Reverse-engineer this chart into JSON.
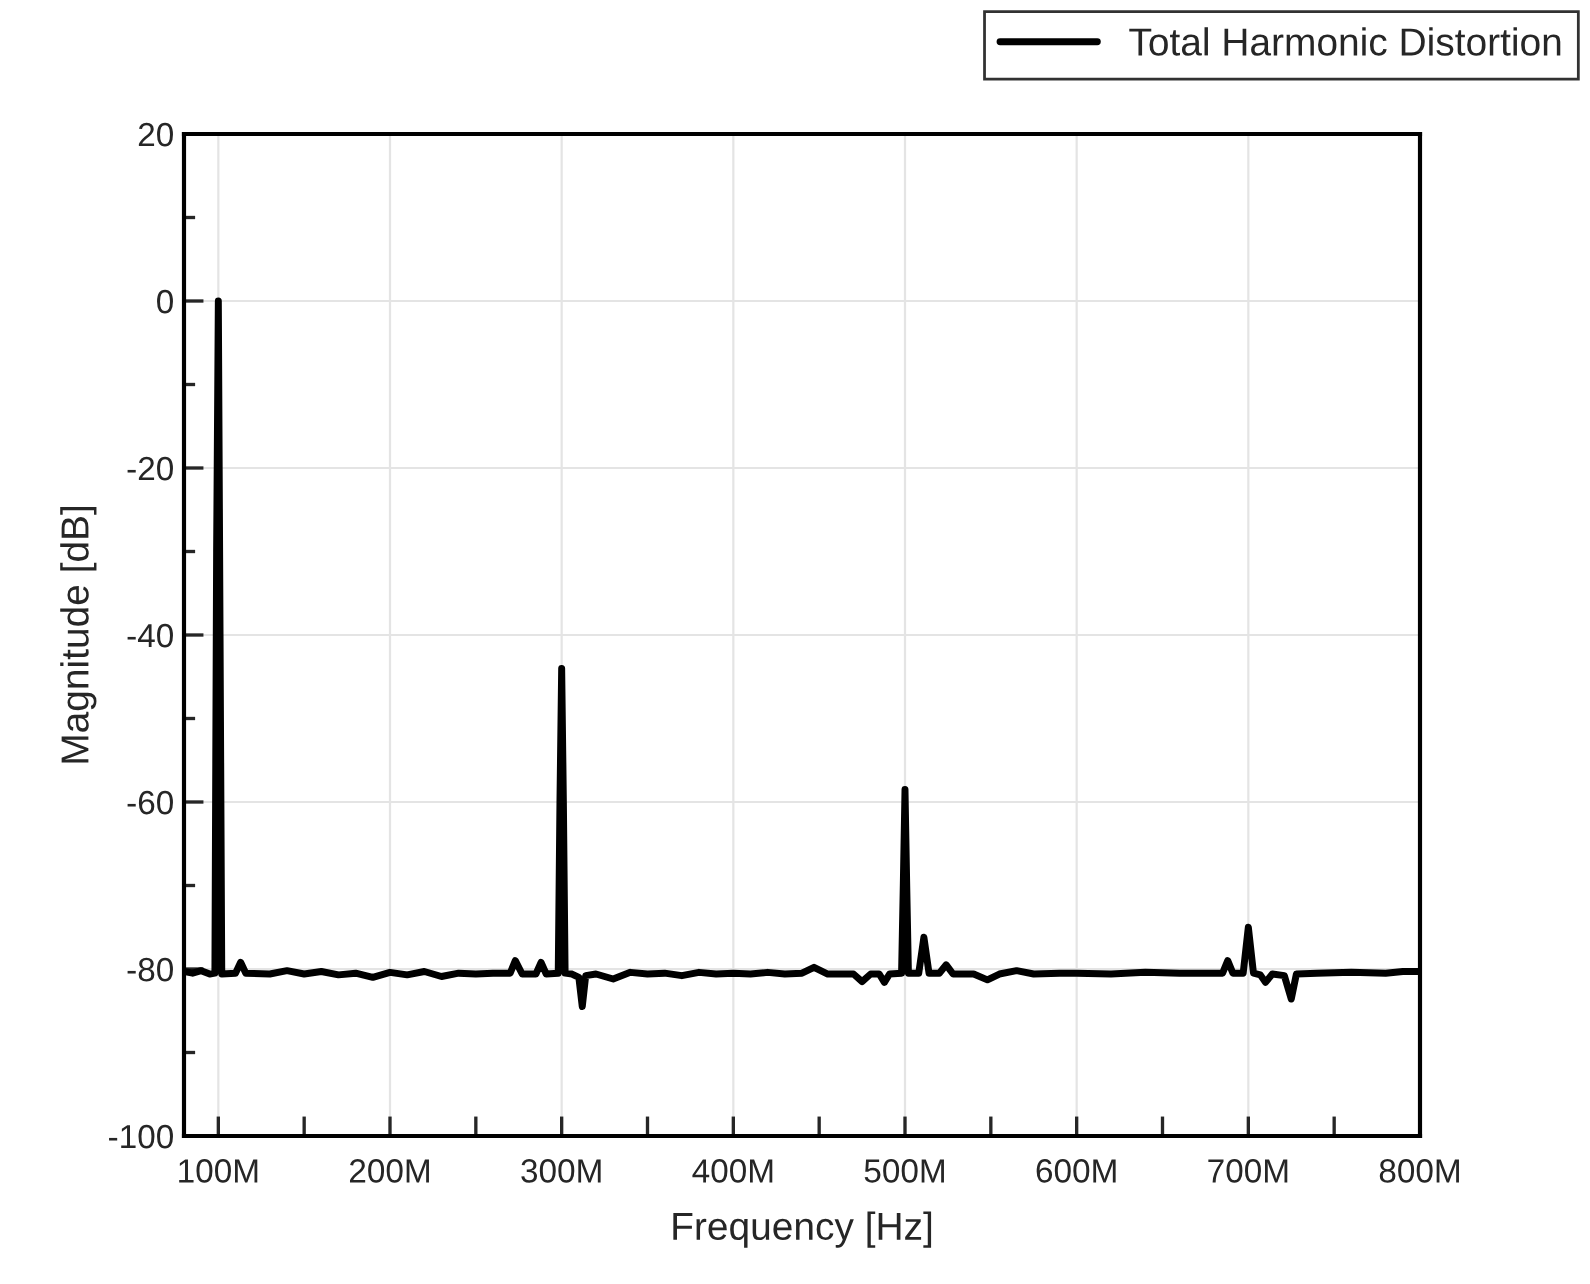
{
  "chart_data": {
    "type": "line",
    "xlabel": "Frequency [Hz]",
    "ylabel": "Magnitude [dB]",
    "xlim": [
      80000000,
      800000000
    ],
    "xticks": [
      {
        "value": 100000000,
        "label": "100M"
      },
      {
        "value": 150000000,
        "label": null
      },
      {
        "value": 200000000,
        "label": "200M"
      },
      {
        "value": 250000000,
        "label": null
      },
      {
        "value": 300000000,
        "label": "300M"
      },
      {
        "value": 350000000,
        "label": null
      },
      {
        "value": 400000000,
        "label": "400M"
      },
      {
        "value": 450000000,
        "label": null
      },
      {
        "value": 500000000,
        "label": "500M"
      },
      {
        "value": 550000000,
        "label": null
      },
      {
        "value": 600000000,
        "label": "600M"
      },
      {
        "value": 650000000,
        "label": null
      },
      {
        "value": 700000000,
        "label": "700M"
      },
      {
        "value": 750000000,
        "label": null
      },
      {
        "value": 800000000,
        "label": "800M"
      }
    ],
    "ylim": [
      -100,
      20
    ],
    "yticks": [
      -100,
      {
        "value": -90,
        "label": null
      },
      -80,
      {
        "value": -70,
        "label": null
      },
      -60,
      {
        "value": -50,
        "label": null
      },
      -40,
      {
        "value": -30,
        "label": null
      },
      -20,
      {
        "value": -10,
        "label": null
      },
      0,
      {
        "value": 10,
        "label": null
      },
      20
    ],
    "grid": true,
    "legend": "top right",
    "marker": "none",
    "line_style": "solid",
    "series": [
      {
        "name": "Total Harmonic Distortion",
        "color": "#000000",
        "x": [
          80000000,
          85000000,
          90000000,
          95000000,
          98000000,
          99000000,
          100000000,
          101000000,
          102000000,
          110000000,
          113000000,
          116000000,
          130000000,
          140000000,
          150000000,
          160000000,
          170000000,
          180000000,
          190000000,
          200000000,
          210000000,
          220000000,
          230000000,
          240000000,
          250000000,
          260000000,
          270000000,
          273000000,
          277000000,
          285000000,
          288000000,
          291000000,
          298000000,
          299000000,
          300000000,
          301000000,
          302000000,
          306000000,
          310000000,
          312000000,
          314000000,
          320000000,
          330000000,
          340000000,
          350000000,
          360000000,
          370000000,
          380000000,
          390000000,
          400000000,
          410000000,
          420000000,
          430000000,
          440000000,
          447000000,
          455000000,
          470000000,
          475000000,
          480000000,
          485000000,
          488000000,
          491000000,
          498000000,
          499000000,
          500000000,
          501000000,
          502000000,
          508000000,
          511000000,
          514000000,
          520000000,
          524000000,
          528000000,
          540000000,
          548000000,
          555000000,
          565000000,
          575000000,
          590000000,
          600000000,
          620000000,
          640000000,
          660000000,
          680000000,
          685000000,
          688000000,
          691000000,
          697000000,
          700000000,
          703000000,
          707000000,
          710000000,
          714000000,
          721000000,
          725000000,
          728000000,
          740000000,
          760000000,
          780000000,
          790000000,
          800000000
        ],
        "values": [
          -80.3,
          -80.5,
          -80.2,
          -80.6,
          -80.5,
          -30,
          0,
          -40,
          -80.6,
          -80.5,
          -79.2,
          -80.5,
          -80.6,
          -80.2,
          -80.6,
          -80.3,
          -80.7,
          -80.5,
          -81,
          -80.4,
          -80.7,
          -80.3,
          -80.9,
          -80.5,
          -80.6,
          -80.5,
          -80.5,
          -79,
          -80.6,
          -80.6,
          -79.2,
          -80.6,
          -80.5,
          -60,
          -44,
          -60,
          -80.5,
          -80.6,
          -81,
          -84.5,
          -80.8,
          -80.6,
          -81.2,
          -80.4,
          -80.6,
          -80.5,
          -80.8,
          -80.4,
          -80.6,
          -80.5,
          -80.6,
          -80.4,
          -80.6,
          -80.5,
          -79.8,
          -80.6,
          -80.6,
          -81.5,
          -80.6,
          -80.6,
          -81.6,
          -80.6,
          -80.5,
          -70,
          -58.5,
          -70,
          -80.5,
          -80.5,
          -76.2,
          -80.5,
          -80.5,
          -79.5,
          -80.6,
          -80.6,
          -81.3,
          -80.6,
          -80.2,
          -80.6,
          -80.5,
          -80.5,
          -80.6,
          -80.4,
          -80.5,
          -80.5,
          -80.5,
          -79,
          -80.5,
          -80.5,
          -75,
          -80.5,
          -80.7,
          -81.6,
          -80.6,
          -80.8,
          -83.6,
          -80.6,
          -80.5,
          -80.4,
          -80.5,
          -80.3,
          -80.3
        ]
      }
    ]
  }
}
